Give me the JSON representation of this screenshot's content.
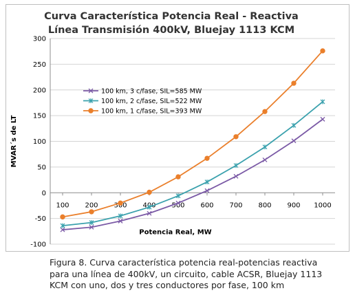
{
  "chart_data": {
    "type": "line",
    "title": [
      "Curva Característica Potencia Real - Reactiva",
      "Línea  Transmisión 400kV,  Bluejay 1113 KCM"
    ],
    "xlabel": "Potencia Real, MW",
    "ylabel": "MVAR´s  de LT",
    "x": [
      100,
      200,
      300,
      400,
      500,
      600,
      700,
      800,
      900,
      1000
    ],
    "xlim": [
      100,
      1000
    ],
    "ylim": [
      -100,
      300
    ],
    "ytick_step": 50,
    "grid": "horizontal",
    "legend_position": "upper-left",
    "series": [
      {
        "name": "100 km, 3 c/fase, SIL=585 MW",
        "marker": "x",
        "color": "#7b5aa6",
        "values": [
          -72,
          -67,
          -55,
          -40,
          -20,
          4,
          32,
          64,
          101,
          143
        ]
      },
      {
        "name": "100 km, 2 c/fase, SIL=522 MW",
        "marker": "asterisk",
        "color": "#3aa1ad",
        "values": [
          -64,
          -58,
          -45,
          -28,
          -6,
          21,
          53,
          89,
          131,
          177
        ]
      },
      {
        "name": "100 km, 1 c/fase, SIL=393 MW",
        "marker": "circle",
        "color": "#ea7f2b",
        "values": [
          -47,
          -37,
          -20,
          1,
          31,
          67,
          109,
          158,
          213,
          276
        ]
      }
    ]
  },
  "caption": "Figura 8. Curva característica potencia real-potencias reactiva para una línea de 400kV, un circuito, cable ACSR, Bluejay 1113 KCM con uno, dos y tres conductores por fase, 100 km"
}
